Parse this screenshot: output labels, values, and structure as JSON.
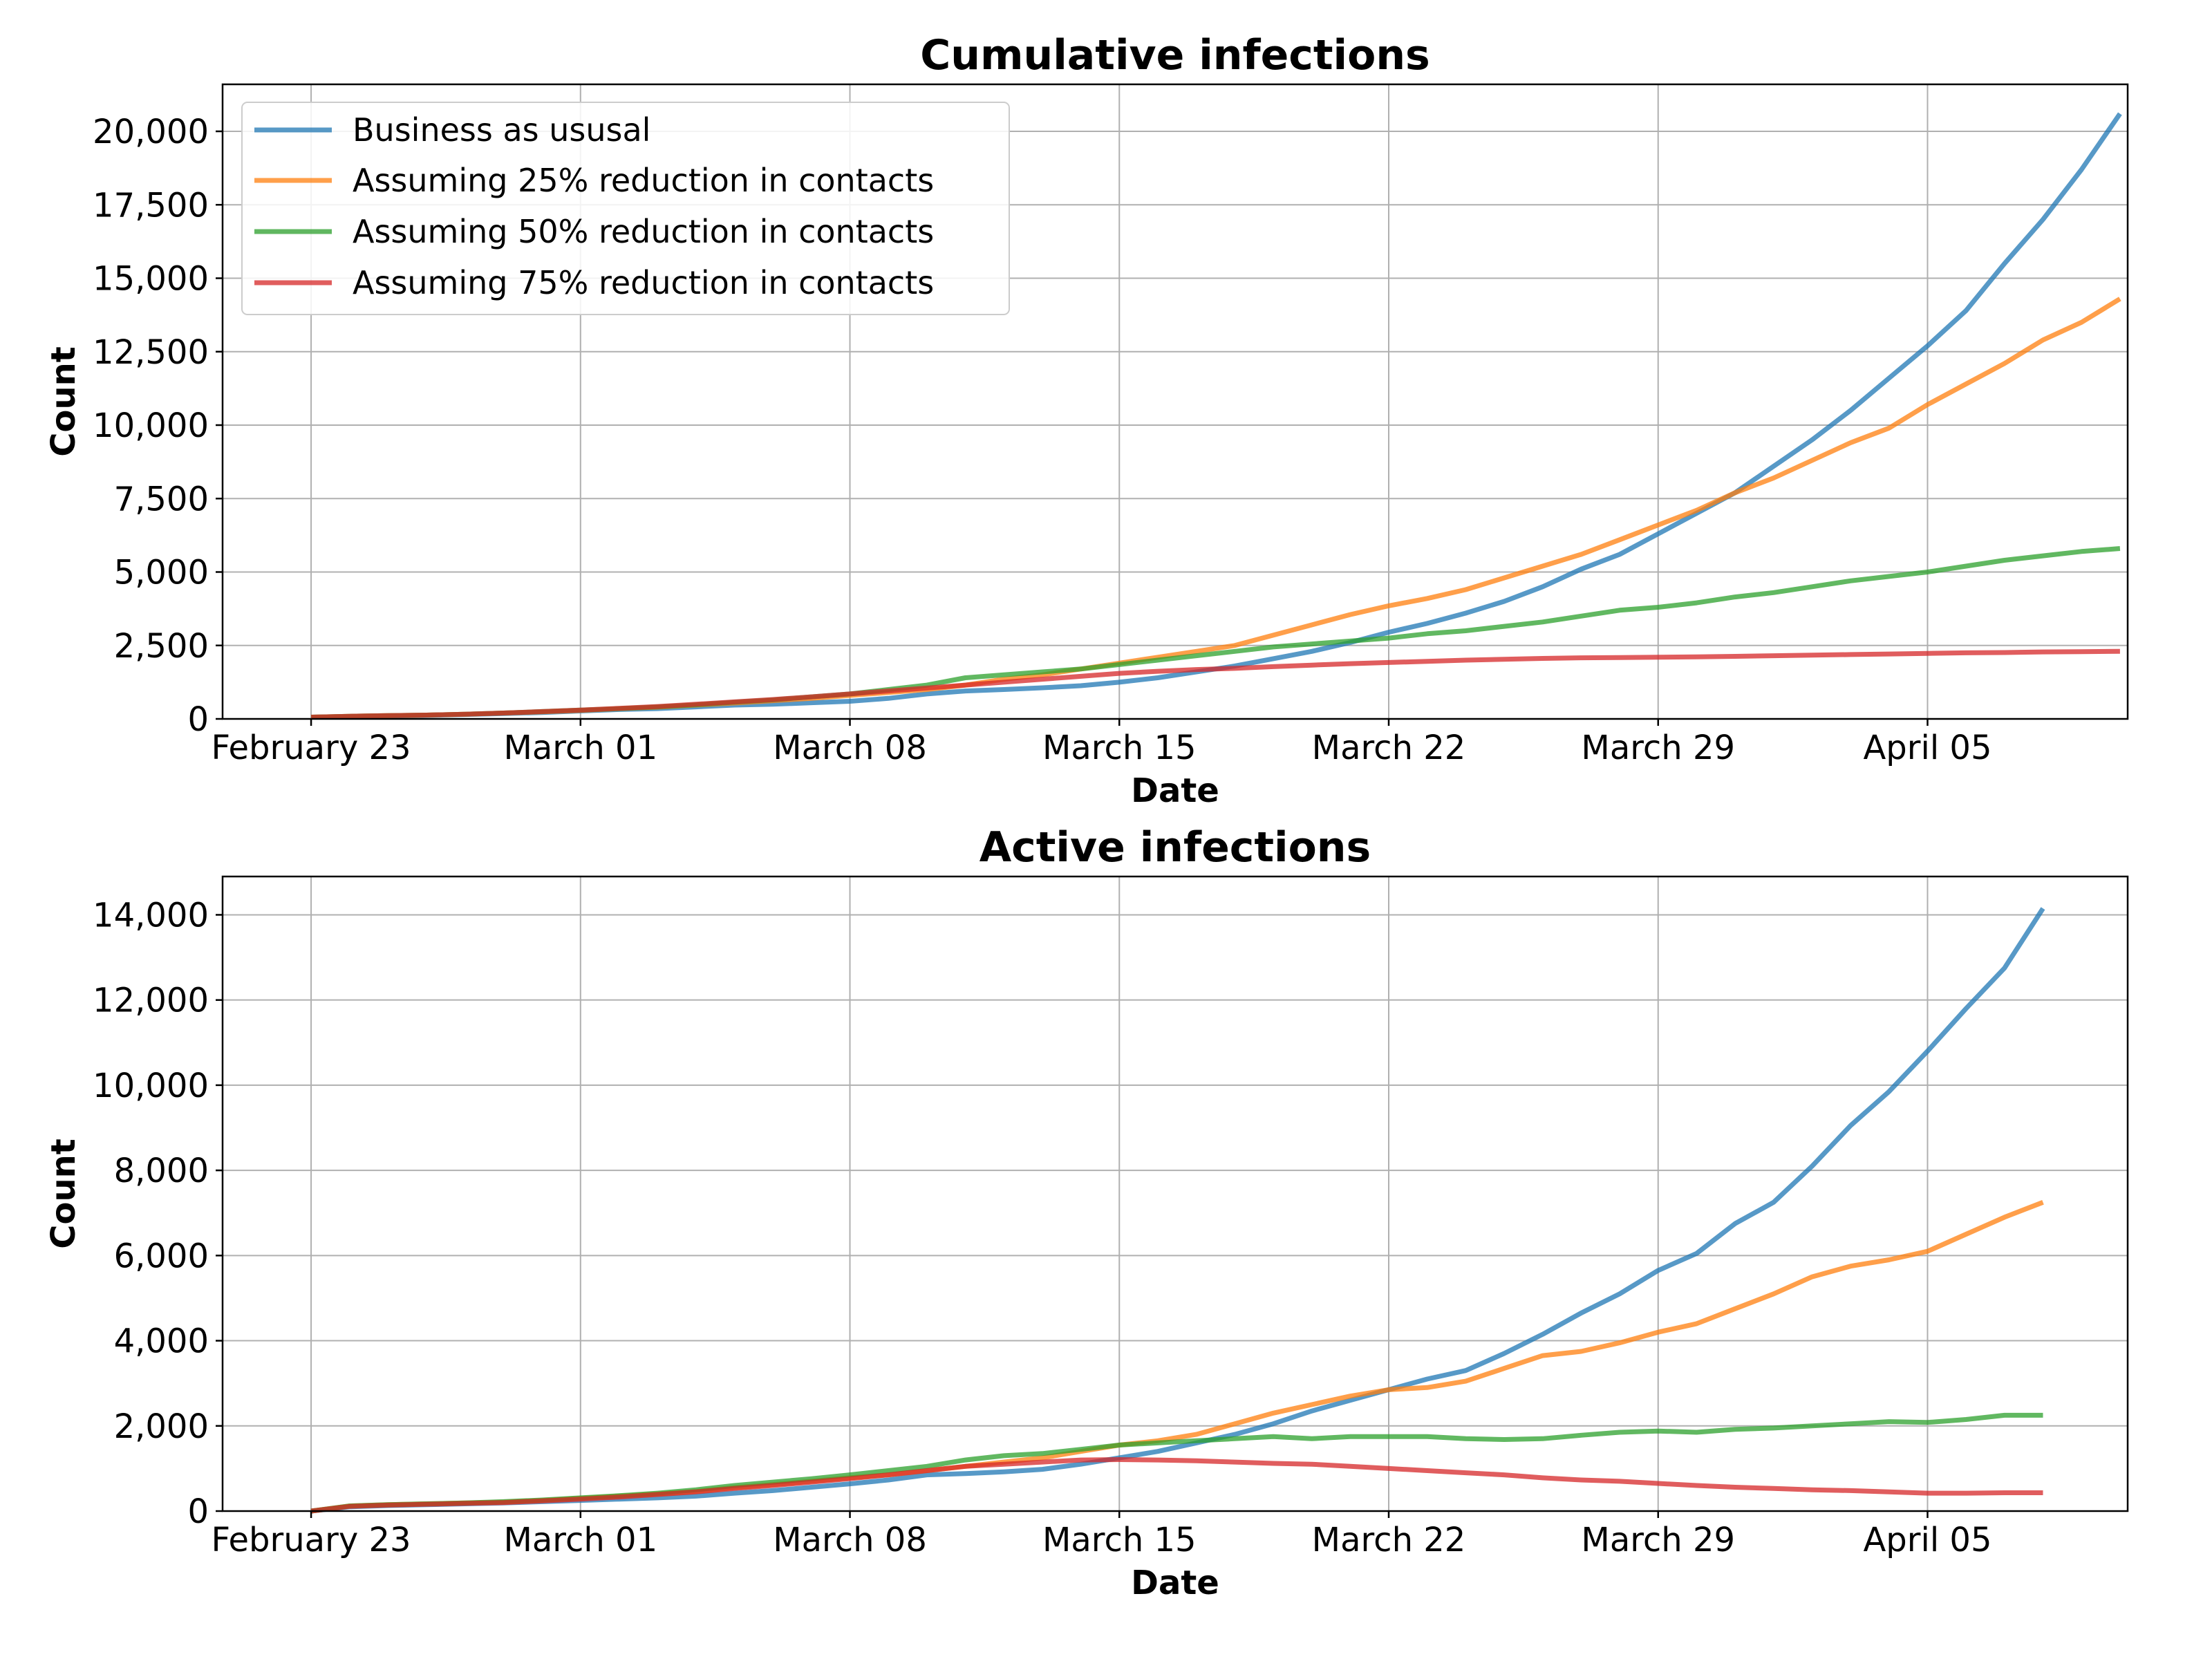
{
  "chart_data": [
    {
      "type": "line",
      "title": "Cumulative infections",
      "xlabel": "Date",
      "ylabel": "Count",
      "x_tick_labels": [
        "February 23",
        "March 01",
        "March 08",
        "March 15",
        "March 22",
        "March 29",
        "April 05"
      ],
      "x_tick_days": [
        0,
        7,
        14,
        21,
        28,
        35,
        42
      ],
      "xlim_days": [
        -2.3,
        47.2
      ],
      "ylim": [
        0,
        21600
      ],
      "y_ticks": [
        0,
        2500,
        5000,
        7500,
        10000,
        12500,
        15000,
        17500,
        20000
      ],
      "y_tick_labels": [
        "0",
        "2,500",
        "5,000",
        "7,500",
        "10,000",
        "12,500",
        "15,000",
        "17,500",
        "20,000"
      ],
      "grid": true,
      "legend_position": "top-left",
      "series": [
        {
          "name": "Business as ususal",
          "color": "#1f77b4",
          "values": [
            60,
            80,
            100,
            120,
            150,
            180,
            220,
            270,
            320,
            350,
            410,
            470,
            500,
            550,
            600,
            700,
            850,
            950,
            1000,
            1060,
            1130,
            1250,
            1400,
            1600,
            1800,
            2050,
            2300,
            2600,
            2950,
            3250,
            3600,
            4000,
            4500,
            5100,
            5600,
            6300,
            7000,
            7700,
            8600,
            9500,
            10500,
            11600,
            12700,
            13900,
            15500,
            17000,
            18700,
            20600
          ]
        },
        {
          "name": "Assuming 25% reduction in contacts",
          "color": "#ff7f0e",
          "values": [
            60,
            90,
            110,
            130,
            160,
            200,
            240,
            290,
            350,
            400,
            470,
            540,
            620,
            700,
            800,
            900,
            1000,
            1150,
            1350,
            1500,
            1700,
            1900,
            2100,
            2300,
            2500,
            2850,
            3200,
            3550,
            3850,
            4100,
            4400,
            4800,
            5200,
            5600,
            6100,
            6600,
            7100,
            7700,
            8200,
            8800,
            9400,
            9900,
            10700,
            11400,
            12100,
            12900,
            13500,
            14300
          ]
        },
        {
          "name": "Assuming 50% reduction in contacts",
          "color": "#2ca02c",
          "values": [
            60,
            90,
            110,
            130,
            160,
            200,
            250,
            300,
            350,
            410,
            480,
            570,
            650,
            750,
            850,
            1000,
            1150,
            1400,
            1500,
            1600,
            1700,
            1850,
            2000,
            2150,
            2300,
            2450,
            2550,
            2650,
            2750,
            2900,
            3000,
            3150,
            3300,
            3500,
            3700,
            3800,
            3950,
            4150,
            4300,
            4500,
            4700,
            4850,
            5000,
            5200,
            5400,
            5550,
            5700,
            5800
          ]
        },
        {
          "name": "Assuming 75% reduction in contacts",
          "color": "#d62728",
          "values": [
            60,
            90,
            110,
            130,
            160,
            200,
            250,
            300,
            360,
            420,
            500,
            580,
            660,
            750,
            850,
            950,
            1050,
            1150,
            1250,
            1350,
            1450,
            1550,
            1620,
            1680,
            1720,
            1780,
            1830,
            1880,
            1920,
            1960,
            2000,
            2030,
            2060,
            2080,
            2090,
            2100,
            2110,
            2130,
            2150,
            2170,
            2190,
            2210,
            2230,
            2250,
            2260,
            2280,
            2290,
            2300
          ]
        }
      ]
    },
    {
      "type": "line",
      "title": "Active infections",
      "xlabel": "Date",
      "ylabel": "Count",
      "x_tick_labels": [
        "February 23",
        "March 01",
        "March 08",
        "March 15",
        "March 22",
        "March 29",
        "April 05"
      ],
      "x_tick_days": [
        0,
        7,
        14,
        21,
        28,
        35,
        42
      ],
      "xlim_days": [
        -2.3,
        47.2
      ],
      "ylim": [
        0,
        14900
      ],
      "y_ticks": [
        0,
        2000,
        4000,
        6000,
        8000,
        10000,
        12000,
        14000
      ],
      "y_tick_labels": [
        "0",
        "2,000",
        "4,000",
        "6,000",
        "8,000",
        "10,000",
        "12,000",
        "14,000"
      ],
      "grid": true,
      "legend_position": "none",
      "series": [
        {
          "name": "Business as ususal",
          "color": "#1f77b4",
          "values": [
            0,
            100,
            130,
            150,
            170,
            190,
            220,
            250,
            280,
            310,
            350,
            420,
            480,
            560,
            640,
            730,
            850,
            880,
            920,
            980,
            1100,
            1250,
            1400,
            1600,
            1800,
            2050,
            2350,
            2600,
            2850,
            3100,
            3300,
            3700,
            4150,
            4650,
            5100,
            5650,
            6050,
            6750,
            7250,
            8100,
            9050,
            9850,
            10800,
            11800,
            12750,
            14150
          ]
        },
        {
          "name": "Assuming 25% reduction in contacts",
          "color": "#ff7f0e",
          "values": [
            0,
            120,
            150,
            170,
            190,
            210,
            250,
            300,
            350,
            400,
            460,
            550,
            620,
            700,
            780,
            850,
            950,
            1050,
            1150,
            1250,
            1400,
            1550,
            1650,
            1800,
            2050,
            2300,
            2500,
            2700,
            2850,
            2900,
            3050,
            3350,
            3650,
            3750,
            3950,
            4200,
            4400,
            4750,
            5100,
            5500,
            5750,
            5900,
            6100,
            6500,
            6900,
            7250
          ]
        },
        {
          "name": "Assuming 50% reduction in contacts",
          "color": "#2ca02c",
          "values": [
            0,
            120,
            150,
            170,
            190,
            220,
            260,
            310,
            360,
            420,
            500,
            600,
            680,
            760,
            850,
            950,
            1050,
            1200,
            1300,
            1350,
            1450,
            1550,
            1600,
            1650,
            1700,
            1750,
            1700,
            1750,
            1750,
            1750,
            1700,
            1680,
            1700,
            1780,
            1850,
            1880,
            1850,
            1920,
            1950,
            2000,
            2050,
            2100,
            2080,
            2150,
            2250,
            2250
          ]
        },
        {
          "name": "Assuming 75% reduction in contacts",
          "color": "#d62728",
          "values": [
            0,
            110,
            140,
            160,
            180,
            200,
            240,
            280,
            330,
            390,
            450,
            530,
            600,
            680,
            760,
            850,
            950,
            1050,
            1100,
            1150,
            1200,
            1210,
            1200,
            1180,
            1150,
            1120,
            1100,
            1050,
            1000,
            950,
            900,
            850,
            780,
            730,
            700,
            650,
            600,
            560,
            530,
            500,
            480,
            450,
            420,
            420,
            430,
            430
          ]
        }
      ]
    }
  ]
}
